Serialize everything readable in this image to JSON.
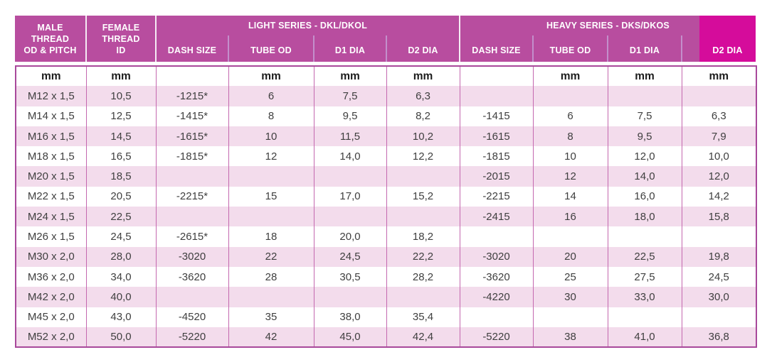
{
  "table": {
    "header": {
      "male_thread_lines": [
        "MALE",
        "THREAD",
        "OD & PITCH"
      ],
      "female_thread_lines": [
        "FEMALE",
        "THREAD",
        "ID"
      ],
      "light_series_label": "LIGHT SERIES - DKL/DKOL",
      "heavy_series_label": "HEAVY SERIES - DKS/DKOS",
      "light_sub_headers": [
        "DASH SIZE",
        "TUBE OD",
        "D1 DIA",
        "D2 DIA"
      ],
      "heavy_sub_headers": [
        "DASH SIZE",
        "TUBE OD",
        "D1 DIA",
        "D2 DIA"
      ]
    },
    "units_row": [
      "mm",
      "mm",
      "",
      "mm",
      "mm",
      "mm",
      "",
      "mm",
      "mm",
      "mm"
    ],
    "rows": [
      [
        "M12 x 1,5",
        "10,5",
        "-1215*",
        "6",
        "7,5",
        "6,3",
        "",
        "",
        "",
        ""
      ],
      [
        "M14 x 1,5",
        "12,5",
        "-1415*",
        "8",
        "9,5",
        "8,2",
        "-1415",
        "6",
        "7,5",
        "6,3"
      ],
      [
        "M16 x 1,5",
        "14,5",
        "-1615*",
        "10",
        "11,5",
        "10,2",
        "-1615",
        "8",
        "9,5",
        "7,9"
      ],
      [
        "M18 x 1,5",
        "16,5",
        "-1815*",
        "12",
        "14,0",
        "12,2",
        "-1815",
        "10",
        "12,0",
        "10,0"
      ],
      [
        "M20 x 1,5",
        "18,5",
        "",
        "",
        "",
        "",
        "-2015",
        "12",
        "14,0",
        "12,0"
      ],
      [
        "M22 x 1,5",
        "20,5",
        "-2215*",
        "15",
        "17,0",
        "15,2",
        "-2215",
        "14",
        "16,0",
        "14,2"
      ],
      [
        "M24 x 1,5",
        "22,5",
        "",
        "",
        "",
        "",
        "-2415",
        "16",
        "18,0",
        "15,8"
      ],
      [
        "M26 x 1,5",
        "24,5",
        "-2615*",
        "18",
        "20,0",
        "18,2",
        "",
        "",
        "",
        ""
      ],
      [
        "M30 x 2,0",
        "28,0",
        "-3020",
        "22",
        "24,5",
        "22,2",
        "-3020",
        "20",
        "22,5",
        "19,8"
      ],
      [
        "M36 x 2,0",
        "34,0",
        "-3620",
        "28",
        "30,5",
        "28,2",
        "-3620",
        "25",
        "27,5",
        "24,5"
      ],
      [
        "M42 x 2,0",
        "40,0",
        "",
        "",
        "",
        "",
        "-4220",
        "30",
        "33,0",
        "30,0"
      ],
      [
        "M45 x 2,0",
        "43,0",
        "-4520",
        "35",
        "38,0",
        "35,4",
        "",
        "",
        "",
        ""
      ],
      [
        "M52 x 2,0",
        "50,0",
        "-5220",
        "42",
        "45,0",
        "42,4",
        "-5220",
        "38",
        "41,0",
        "36,8"
      ]
    ],
    "colors": {
      "header_bg": "#b84d9f",
      "highlight_bg": "#d50c9b",
      "row_pink": "#f3dcec",
      "row_white": "#ffffff",
      "grid_line": "#c468af",
      "outer_border": "#a8499b",
      "header_text": "#ffffff",
      "body_text": "#3f3f3f"
    }
  }
}
